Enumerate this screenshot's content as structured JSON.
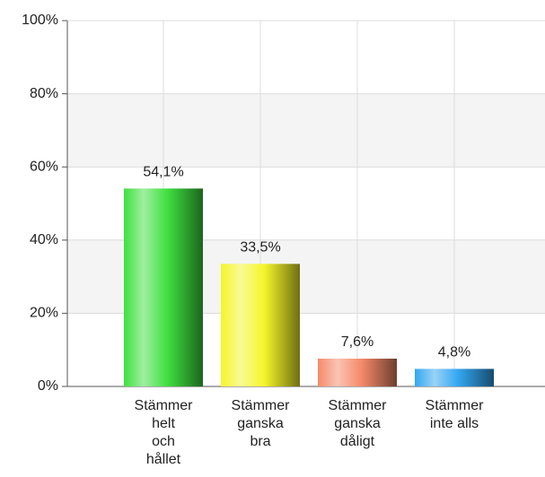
{
  "chart_data": {
    "type": "bar",
    "categories": [
      "Stämmer\nhelt\noch\nhållet",
      "Stämmer\nganska\nbra",
      "Stämmer\nganska\ndåligt",
      "Stämmer\ninte alls"
    ],
    "values": [
      54.1,
      33.5,
      7.6,
      4.8
    ],
    "value_labels": [
      "54,1%",
      "33,5%",
      "7,6%",
      "4,8%"
    ],
    "colors": [
      "#3fe03f",
      "#f5f52a",
      "#f58a6a",
      "#33a6f0"
    ],
    "ylim": [
      0,
      100
    ],
    "yticks": [
      {
        "value": 0,
        "label": "0%"
      },
      {
        "value": 20,
        "label": "20%"
      },
      {
        "value": 40,
        "label": "40%"
      },
      {
        "value": 60,
        "label": "60%"
      },
      {
        "value": 80,
        "label": "80%"
      },
      {
        "value": 100,
        "label": "100%"
      }
    ],
    "grid": true
  }
}
